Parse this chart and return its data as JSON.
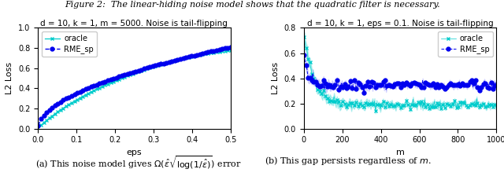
{
  "fig_title": "Figure 2:  The linear-hiding noise model shows that the quadratic filter is necessary.",
  "fig_title_fontsize": 8,
  "caption_a": "(a) This noise model gives $\\Omega(\\hat{\\varepsilon}\\sqrt{\\log(1/\\hat{\\varepsilon})})$ error",
  "caption_b": "(b) This gap persists regardless of $m$.",
  "plot1_title": "d = 10, k = 1, m = 5000. Noise is tail-flipping",
  "plot1_xlabel": "eps",
  "plot1_ylabel": "L2 Loss",
  "plot1_xlim": [
    0.0,
    0.5
  ],
  "plot1_ylim": [
    0.0,
    1.0
  ],
  "plot1_xticks": [
    0.0,
    0.1,
    0.2,
    0.3,
    0.4,
    0.5
  ],
  "plot1_yticks": [
    0.0,
    0.2,
    0.4,
    0.6,
    0.8,
    1.0
  ],
  "plot2_title": "d = 10, k = 1, eps = 0.1. Noise is tail-flipping",
  "plot2_xlabel": "m",
  "plot2_ylabel": "L2 Loss",
  "plot2_xlim": [
    0,
    1000
  ],
  "plot2_ylim": [
    0.0,
    0.8
  ],
  "plot2_xticks": [
    0,
    200,
    400,
    600,
    800,
    1000
  ],
  "plot2_yticks": [
    0.0,
    0.2,
    0.4,
    0.6,
    0.8
  ],
  "oracle_color": "#00CCCC",
  "rme_color": "#0000EE",
  "rme_fill_color": "#8888FF",
  "legend_fontsize": 7,
  "title_fontsize": 7.5,
  "tick_fontsize": 7,
  "label_fontsize": 8,
  "marker_size_plot1": 3.5,
  "marker_size_plot2": 3.5
}
